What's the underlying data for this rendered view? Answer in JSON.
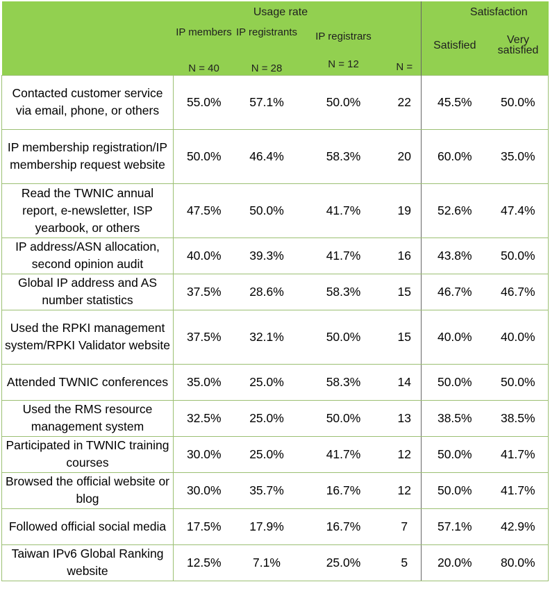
{
  "header": {
    "usage_rate": "Usage rate",
    "satisfaction": "Satisfaction",
    "ip_members": "IP members",
    "ip_registrants": "IP registrants",
    "ip_registrars": "IP registrars",
    "n_members": "N = 40",
    "n_registrants": "N = 28",
    "n_registrars": "N = 12",
    "n_blank": "N =",
    "satisfied": "Satisfied",
    "very_satisfied": "Very satisfied"
  },
  "rows": [
    {
      "service": "Contacted customer service via email, phone, or others",
      "members": "55.0%",
      "registrants": "57.1%",
      "registrars": "50.0%",
      "n": "22",
      "satisfied": "45.5%",
      "very": "50.0%"
    },
    {
      "service": "IP membership registration/IP membership request website",
      "members": "50.0%",
      "registrants": "46.4%",
      "registrars": "58.3%",
      "n": "20",
      "satisfied": "60.0%",
      "very": "35.0%"
    },
    {
      "service": "Read the TWNIC annual report, e-newsletter, ISP yearbook, or others",
      "members": "47.5%",
      "registrants": "50.0%",
      "registrars": "41.7%",
      "n": "19",
      "satisfied": "52.6%",
      "very": "47.4%"
    },
    {
      "service": "IP address/ASN allocation, second opinion audit",
      "members": "40.0%",
      "registrants": "39.3%",
      "registrars": "41.7%",
      "n": "16",
      "satisfied": "43.8%",
      "very": "50.0%"
    },
    {
      "service": "Global IP address and AS number statistics",
      "members": "37.5%",
      "registrants": "28.6%",
      "registrars": "58.3%",
      "n": "15",
      "satisfied": "46.7%",
      "very": "46.7%"
    },
    {
      "service": "Used the RPKI management system/RPKI Validator website",
      "members": "37.5%",
      "registrants": "32.1%",
      "registrars": "50.0%",
      "n": "15",
      "satisfied": "40.0%",
      "very": "40.0%"
    },
    {
      "service": "Attended TWNIC conferences",
      "members": "35.0%",
      "registrants": "25.0%",
      "registrars": "58.3%",
      "n": "14",
      "satisfied": "50.0%",
      "very": "50.0%"
    },
    {
      "service": "Used the RMS resource management system",
      "members": "32.5%",
      "registrants": "25.0%",
      "registrars": "50.0%",
      "n": "13",
      "satisfied": "38.5%",
      "very": "38.5%"
    },
    {
      "service": "Participated in TWNIC training courses",
      "members": "30.0%",
      "registrants": "25.0%",
      "registrars": "41.7%",
      "n": "12",
      "satisfied": "50.0%",
      "very": "41.7%"
    },
    {
      "service": "Browsed the official website or blog",
      "members": "30.0%",
      "registrants": "35.7%",
      "registrars": "16.7%",
      "n": "12",
      "satisfied": "50.0%",
      "very": "41.7%"
    },
    {
      "service": "Followed official social media",
      "members": "17.5%",
      "registrants": "17.9%",
      "registrars": "16.7%",
      "n": "7",
      "satisfied": "57.1%",
      "very": "42.9%"
    },
    {
      "service": "Taiwan IPv6 Global Ranking website",
      "members": "12.5%",
      "registrants": "7.1%",
      "registrars": "25.0%",
      "n": "5",
      "satisfied": "20.0%",
      "very": "80.0%"
    }
  ]
}
